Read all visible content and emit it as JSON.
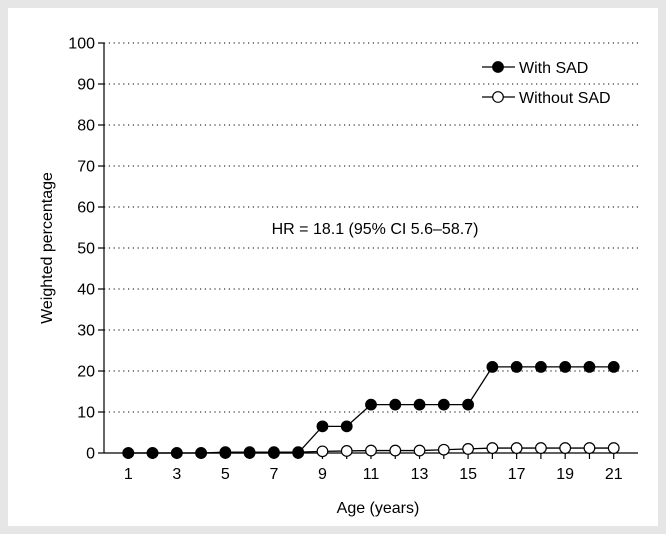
{
  "chart_data": {
    "type": "line",
    "xlabel": "Age (years)",
    "ylabel": "Weighted percentage",
    "xlim": [
      0,
      22
    ],
    "ylim": [
      0,
      100
    ],
    "xticks": [
      1,
      3,
      5,
      7,
      9,
      11,
      13,
      15,
      17,
      19,
      21
    ],
    "yticks": [
      0,
      10,
      20,
      30,
      40,
      50,
      60,
      70,
      80,
      90,
      100
    ],
    "grid": "horizontal dotted",
    "legend_position": "top-right",
    "annotation": "HR = 18.1 (95% CI 5.6–58.7)",
    "x": [
      1,
      2,
      3,
      4,
      5,
      6,
      7,
      8,
      9,
      10,
      11,
      12,
      13,
      14,
      15,
      16,
      17,
      18,
      19,
      20,
      21
    ],
    "series": [
      {
        "name": "With SAD",
        "marker": "filled-circle",
        "values": [
          0,
          0,
          0,
          0,
          0,
          0,
          0,
          0,
          6.5,
          6.5,
          11.8,
          11.8,
          11.8,
          11.8,
          11.8,
          21,
          21,
          21,
          21,
          21,
          21
        ]
      },
      {
        "name": "Without SAD",
        "marker": "open-circle",
        "values": [
          0,
          0,
          0,
          0,
          0.2,
          0.2,
          0.2,
          0.2,
          0.4,
          0.5,
          0.6,
          0.6,
          0.6,
          0.8,
          1.0,
          1.2,
          1.2,
          1.2,
          1.2,
          1.2,
          1.2
        ]
      }
    ]
  },
  "colors": {
    "background": "#e6e6e6",
    "plot_background": "#ffffff",
    "line": "#000000",
    "filled_marker": "#000000",
    "open_marker_fill": "#ffffff"
  }
}
